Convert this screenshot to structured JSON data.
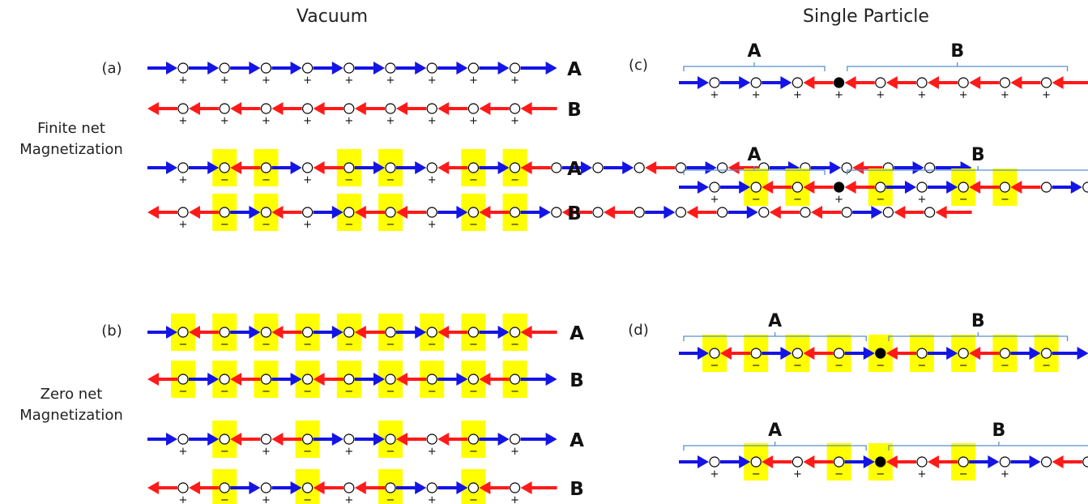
{
  "titles": {
    "vacuum": "Vacuum",
    "single": "Single Particle"
  },
  "side_labels": {
    "finite": [
      "Finite net",
      "Magnetization"
    ],
    "zero": [
      "Zero net",
      "Magnetization"
    ]
  },
  "colors": {
    "blue": "#1414e6",
    "red": "#ff1a1a",
    "highlight": "#ffff00",
    "bracket": "#5b8fc9"
  },
  "panels": [
    {
      "label": "(a)",
      "rows": [
        {
          "label": "A",
          "arrows": "RRRRRRRRRR",
          "signs": "+++++++++"
        },
        {
          "label": "B",
          "arrows": "LLLLLLLLLL",
          "signs": "+++++++++"
        },
        {
          "label": "A",
          "arrows": "RRLRLRRLRLRRLRLRRLRR",
          "signs": "+--+--+--"
        },
        {
          "label": "B",
          "arrows": "LLRLRLLRLRLLRLRLLRLL",
          "signs": "+--+--+--"
        }
      ]
    },
    {
      "label": "(b)",
      "rows": [
        {
          "label": "A",
          "arrows": "RLRLRLRLRL",
          "signs": "---------"
        },
        {
          "label": "B",
          "arrows": "LRLRLRLRLR",
          "signs": "---------"
        },
        {
          "label": "A",
          "arrows": "RRLLRRLLRR",
          "signs": "+-+-+-+-+"
        },
        {
          "label": "B",
          "arrows": "LLRRLLRRLL",
          "signs": "+-+-+-+-+"
        }
      ]
    },
    {
      "label": "(c)",
      "rows": [
        {
          "brackets": [
            "A",
            "B"
          ],
          "arrows": "RRRLLLLLLL",
          "signs": "+++++++++",
          "particle": 3
        },
        {
          "brackets": [
            "A",
            "B"
          ],
          "arrows": "RRLLLRRLLRL",
          "signs": "+--+-+--",
          "particle": 3
        }
      ]
    },
    {
      "label": "(d)",
      "rows": [
        {
          "brackets": [
            "A",
            "B"
          ],
          "arrows": "RLRLRLRLRR",
          "signs": "---------",
          "particle": 4
        },
        {
          "brackets": [
            "A",
            "B"
          ],
          "arrows": "RRLLRLLRRLL",
          "signs": "+-+--+-+",
          "particle": 4
        }
      ]
    }
  ]
}
